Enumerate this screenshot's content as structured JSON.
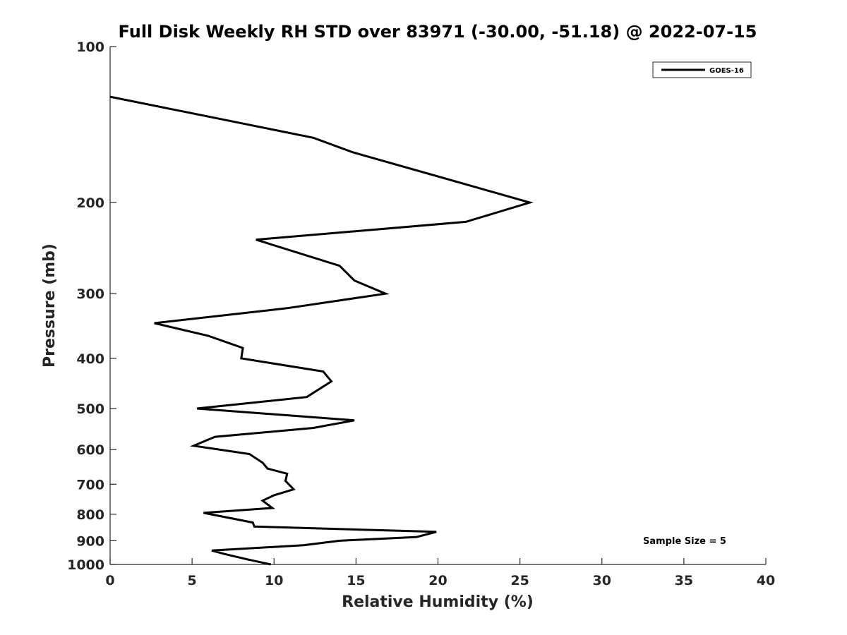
{
  "chart_data": {
    "type": "line",
    "title": "Full Disk Weekly RH STD over 83971 (-30.00, -51.18) @ 2022-07-15",
    "xlabel": "Relative Humidity (%)",
    "ylabel": "Pressure (mb)",
    "xlim": [
      0,
      40
    ],
    "ylim": [
      100,
      1000
    ],
    "yscale": "log",
    "y_reversed": true,
    "grid": false,
    "x_ticks": [
      0,
      5,
      10,
      15,
      20,
      25,
      30,
      35,
      40
    ],
    "x_tick_labels": [
      "0",
      "5",
      "10",
      "15",
      "20",
      "25",
      "30",
      "35",
      "40"
    ],
    "y_ticks": [
      100,
      200,
      300,
      400,
      500,
      600,
      700,
      800,
      900,
      1000
    ],
    "y_tick_labels": [
      "100",
      "200",
      "300",
      "400",
      "500",
      "600",
      "700",
      "800",
      "900",
      "1000"
    ],
    "legend_position": "top-right",
    "series": [
      {
        "name": "GOES-16",
        "color": "#000000",
        "points": [
          [
            0.0,
            125
          ],
          [
            12.4,
            150
          ],
          [
            14.8,
            160
          ],
          [
            25.6,
            200
          ],
          [
            21.7,
            218
          ],
          [
            8.9,
            236
          ],
          [
            14.0,
            265
          ],
          [
            14.9,
            283
          ],
          [
            16.8,
            300
          ],
          [
            10.8,
            320
          ],
          [
            2.7,
            342
          ],
          [
            6.0,
            362
          ],
          [
            8.1,
            382
          ],
          [
            8.0,
            400
          ],
          [
            13.0,
            424
          ],
          [
            13.5,
            443
          ],
          [
            12.0,
            475
          ],
          [
            5.3,
            500
          ],
          [
            14.9,
            527
          ],
          [
            12.4,
            545
          ],
          [
            6.4,
            567
          ],
          [
            5.1,
            590
          ],
          [
            8.5,
            612
          ],
          [
            9.3,
            636
          ],
          [
            9.6,
            653
          ],
          [
            10.8,
            668
          ],
          [
            10.7,
            690
          ],
          [
            11.2,
            716
          ],
          [
            10.0,
            735
          ],
          [
            9.3,
            753
          ],
          [
            9.9,
            778
          ],
          [
            5.7,
            795
          ],
          [
            8.7,
            830
          ],
          [
            8.8,
            845
          ],
          [
            19.9,
            865
          ],
          [
            18.7,
            885
          ],
          [
            14.0,
            900
          ],
          [
            11.8,
            918
          ],
          [
            6.2,
            940
          ],
          [
            7.0,
            955
          ],
          [
            8.4,
            978
          ],
          [
            9.8,
            1000
          ]
        ]
      }
    ],
    "annotations": [
      {
        "text": "Sample Size = 5",
        "position": "bottom-right"
      }
    ]
  }
}
